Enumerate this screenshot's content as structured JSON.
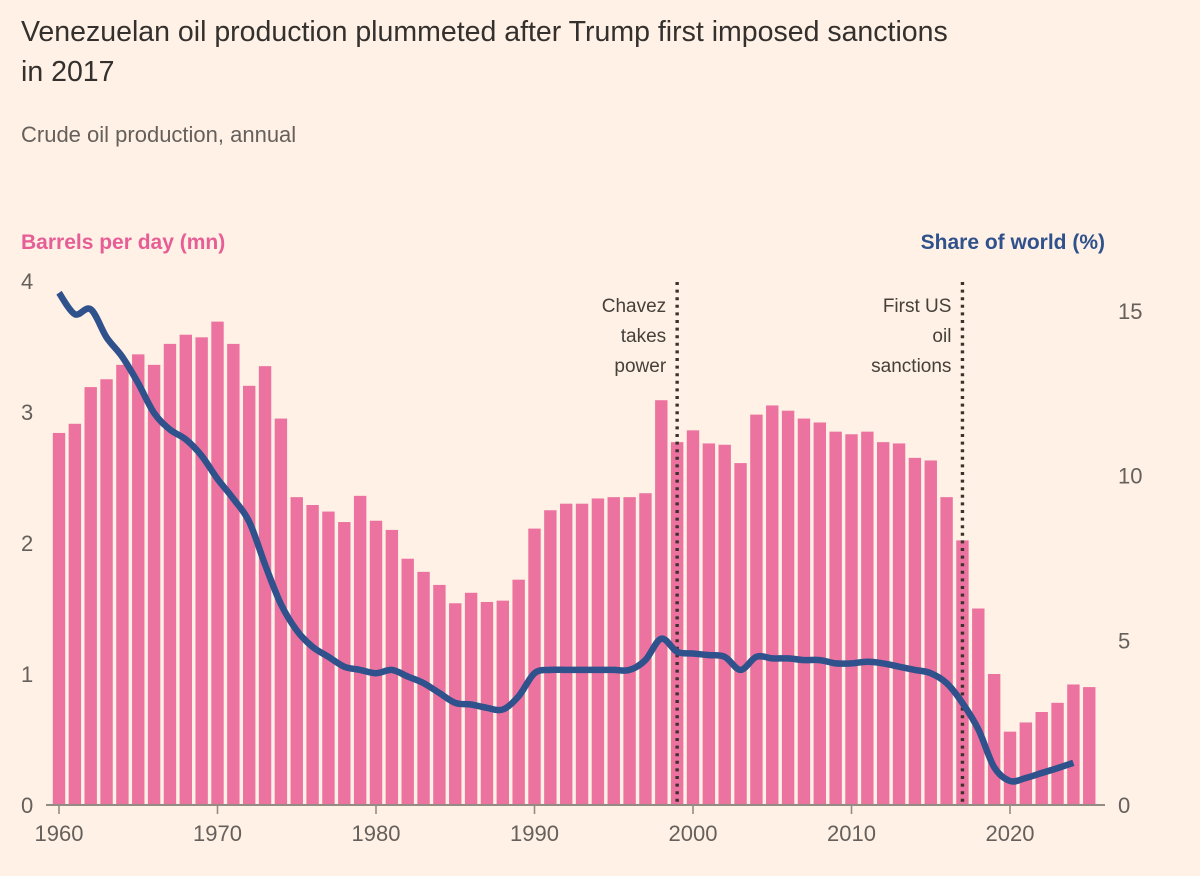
{
  "title": {
    "line1": "Venezuelan oil production plummeted after Trump first imposed sanctions",
    "line2": "in 2017"
  },
  "subtitle": "Crude oil production, annual",
  "left_axis": {
    "title": "Barrels per day (mn)",
    "tick_labels": [
      "0",
      "1",
      "2",
      "3",
      "4"
    ],
    "color": "#e75d95"
  },
  "right_axis": {
    "title": "Share of world (%)",
    "tick_labels": [
      "0",
      "5",
      "10",
      "15"
    ],
    "color": "#2f518c"
  },
  "x_axis": {
    "tick_labels": [
      "1960",
      "1970",
      "1980",
      "1990",
      "2000",
      "2010",
      "2020"
    ]
  },
  "annotations": [
    {
      "year": 1999,
      "lines": [
        "Chavez",
        "takes",
        "power"
      ]
    },
    {
      "year": 2017,
      "lines": [
        "First US",
        "oil",
        "sanctions"
      ]
    }
  ],
  "colors": {
    "background": "#fff1e5",
    "title_text": "#33302e",
    "secondary_text": "#66605c",
    "axis_line": "#948b82",
    "annotation_line": "#3a322b",
    "bar": "#ec73a0",
    "line": "#2f518c"
  },
  "chart_data": {
    "type": "bar+line",
    "title": "Venezuelan oil production plummeted after Trump first imposed sanctions in 2017",
    "subtitle": "Crude oil production, annual",
    "x": [
      1960,
      1961,
      1962,
      1963,
      1964,
      1965,
      1966,
      1967,
      1968,
      1969,
      1970,
      1971,
      1972,
      1973,
      1974,
      1975,
      1976,
      1977,
      1978,
      1979,
      1980,
      1981,
      1982,
      1983,
      1984,
      1985,
      1986,
      1987,
      1988,
      1989,
      1990,
      1991,
      1992,
      1993,
      1994,
      1995,
      1996,
      1997,
      1998,
      1999,
      2000,
      2001,
      2002,
      2003,
      2004,
      2005,
      2006,
      2007,
      2008,
      2009,
      2010,
      2011,
      2012,
      2013,
      2014,
      2015,
      2016,
      2017,
      2018,
      2019,
      2020,
      2021,
      2022,
      2023,
      2024,
      2025
    ],
    "series": [
      {
        "name": "Crude oil production",
        "type": "bar",
        "axis": "left",
        "unit": "mn barrels per day",
        "color": "#ec73a0",
        "values": [
          2.84,
          2.91,
          3.19,
          3.25,
          3.36,
          3.44,
          3.36,
          3.52,
          3.59,
          3.57,
          3.69,
          3.52,
          3.2,
          3.35,
          2.95,
          2.35,
          2.29,
          2.24,
          2.16,
          2.36,
          2.17,
          2.1,
          1.88,
          1.78,
          1.68,
          1.54,
          1.62,
          1.55,
          1.56,
          1.72,
          2.11,
          2.25,
          2.3,
          2.3,
          2.34,
          2.35,
          2.35,
          2.38,
          3.09,
          2.77,
          2.86,
          2.76,
          2.75,
          2.61,
          2.98,
          3.05,
          3.01,
          2.95,
          2.92,
          2.85,
          2.83,
          2.85,
          2.77,
          2.76,
          2.65,
          2.63,
          2.35,
          2.02,
          1.5,
          1.0,
          0.56,
          0.63,
          0.71,
          0.78,
          0.92,
          0.9
        ]
      },
      {
        "name": "Share of world",
        "type": "line",
        "axis": "right",
        "unit": "%",
        "color": "#2f518c",
        "values": [
          15.55,
          14.9,
          15.05,
          14.2,
          13.6,
          12.8,
          11.9,
          11.4,
          11.1,
          10.6,
          9.9,
          9.3,
          8.6,
          7.3,
          6.1,
          5.3,
          4.8,
          4.5,
          4.2,
          4.1,
          4.0,
          4.1,
          3.9,
          3.7,
          3.4,
          3.1,
          3.05,
          2.95,
          2.9,
          3.3,
          4.0,
          4.1,
          4.1,
          4.1,
          4.1,
          4.1,
          4.1,
          4.4,
          5.05,
          4.65,
          4.6,
          4.55,
          4.5,
          4.1,
          4.5,
          4.45,
          4.45,
          4.4,
          4.4,
          4.3,
          4.3,
          4.35,
          4.3,
          4.2,
          4.1,
          4.0,
          3.7,
          3.1,
          2.3,
          1.15,
          0.73,
          0.82,
          0.97,
          1.12,
          1.28,
          null
        ]
      }
    ],
    "left_ylim": [
      0,
      4
    ],
    "right_ylim": [
      0,
      16
    ],
    "left_yticks": [
      0,
      1,
      2,
      3,
      4
    ],
    "right_yticks": [
      0,
      5,
      10,
      15
    ],
    "xticks": [
      1960,
      1970,
      1980,
      1990,
      2000,
      2010,
      2020
    ],
    "grid": false,
    "legend_position": "axis-headers-above-plot",
    "annotation_vlines": [
      1999,
      2017
    ]
  }
}
